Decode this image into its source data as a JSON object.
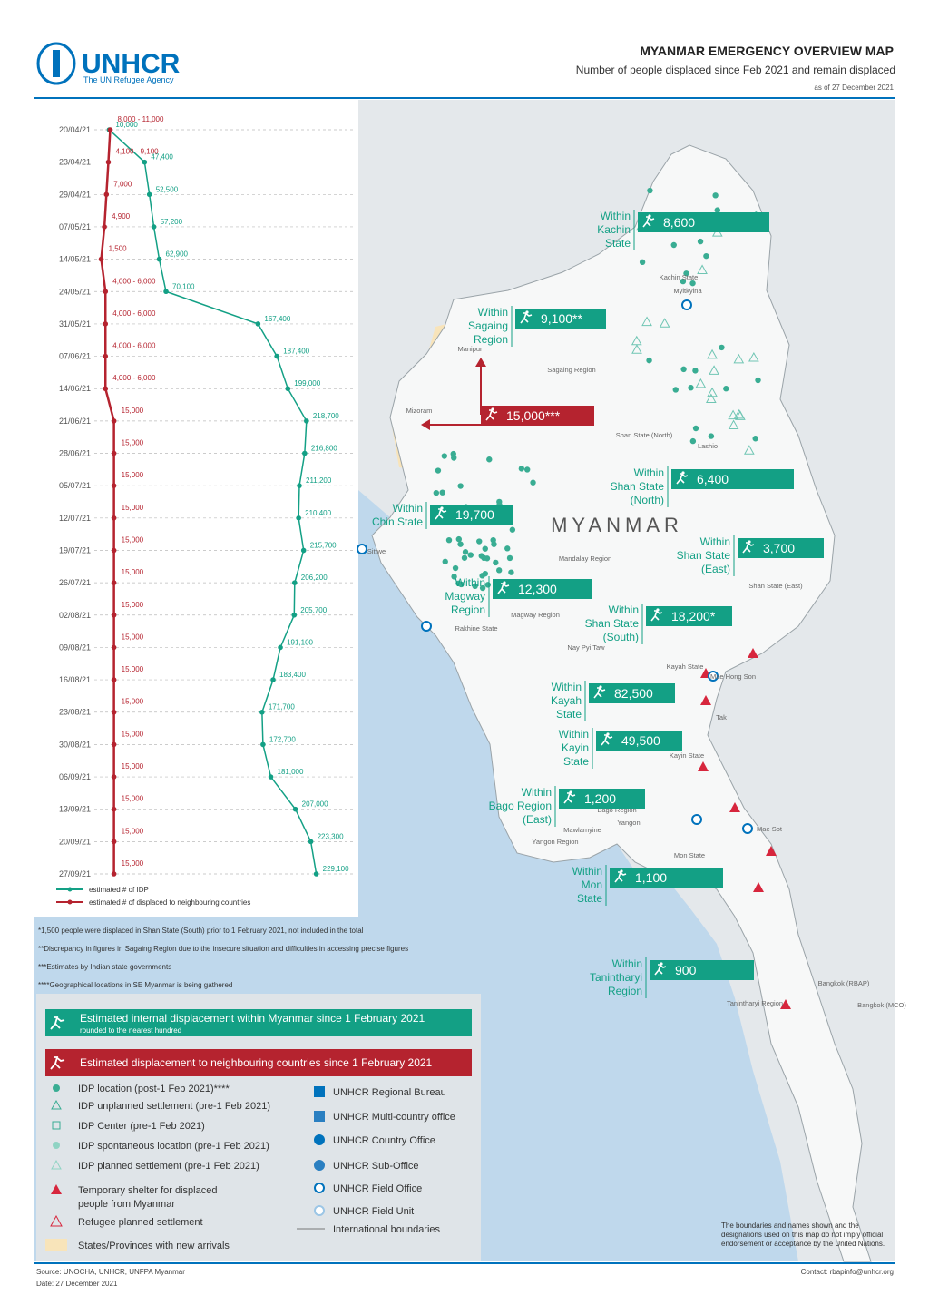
{
  "header": {
    "logo": "UNHCR",
    "logo_tagline": "The UN Refugee Agency",
    "title": "MYANMAR EMERGENCY OVERVIEW MAP",
    "subtitle": "Number of people displaced since Feb 2021 and remain displaced",
    "date": "as of 27 December 2021"
  },
  "timeline": {
    "type": "line",
    "dates": [
      "20/04/21",
      "23/04/21",
      "29/04/21",
      "07/05/21",
      "14/05/21",
      "24/05/21",
      "31/05/21",
      "07/06/21",
      "14/06/21",
      "21/06/21",
      "28/06/21",
      "05/07/21",
      "12/07/21",
      "19/07/21",
      "26/07/21",
      "02/08/21",
      "09/08/21",
      "16/08/21",
      "23/08/21",
      "30/08/21",
      "06/09/21",
      "13/09/21",
      "20/09/21",
      "27/09/21"
    ],
    "xlim": [
      0,
      240000
    ],
    "series": [
      {
        "name": "estimated # of IDP",
        "color": "#13a085",
        "values": [
          10000,
          47400,
          52500,
          57200,
          62900,
          70100,
          167400,
          187400,
          199000,
          218700,
          216800,
          211200,
          210400,
          215700,
          206200,
          205700,
          191100,
          183400,
          171700,
          172700,
          181000,
          207000,
          223300,
          229100
        ],
        "value_labels": [
          "10,000",
          "47,400",
          "52,500",
          "57,200",
          "62,900",
          "70,100",
          "167,400",
          "187,400",
          "199,000",
          "218,700",
          "216,800",
          "211,200",
          "210,400",
          "215,700",
          "206,200",
          "205,700",
          "191,100",
          "183,400",
          "171,700",
          "172,700",
          "181,000",
          "207,000",
          "223,300",
          "229,100"
        ]
      },
      {
        "name": "estimated # of displaced to neighbouring countries",
        "color": "#b5232f",
        "values": [
          11000,
          9100,
          7000,
          4900,
          1500,
          6000,
          6000,
          6000,
          6000,
          15000,
          15000,
          15000,
          15000,
          15000,
          15000,
          15000,
          15000,
          15000,
          15000,
          15000,
          15000,
          15000,
          15000,
          15000
        ],
        "value_labels": [
          "8,000 - 11,000",
          "4,100 - 9,100",
          "7,000",
          "4,900",
          "1,500",
          "4,000 - 6,000",
          "4,000 - 6,000",
          "4,000 - 6,000",
          "4,000 - 6,000",
          "15,000",
          "15,000",
          "15,000",
          "15,000",
          "15,000",
          "15,000",
          "15,000",
          "15,000",
          "15,000",
          "15,000",
          "15,000",
          "15,000",
          "15,000",
          "15,000",
          "15,000"
        ]
      }
    ]
  },
  "map": {
    "country_label": "MYANMAR",
    "callouts": [
      {
        "lines": [
          "Within",
          "Kachin",
          "State"
        ],
        "value": "8,600",
        "kind": "idp"
      },
      {
        "lines": [
          "Within",
          "Sagaing",
          "Region"
        ],
        "value": "9,100**",
        "kind": "idp"
      },
      {
        "lines": [],
        "value": "15,000***",
        "kind": "refugee"
      },
      {
        "lines": [
          "Within",
          "Shan State",
          "(North)"
        ],
        "value": "6,400",
        "kind": "idp"
      },
      {
        "lines": [
          "Within",
          "Chin State"
        ],
        "value": "19,700",
        "kind": "idp"
      },
      {
        "lines": [
          "Within",
          "Shan State",
          "(East)"
        ],
        "value": "3,700",
        "kind": "idp"
      },
      {
        "lines": [
          "Within",
          "Magway",
          "Region"
        ],
        "value": "12,300",
        "kind": "idp"
      },
      {
        "lines": [
          "Within",
          "Shan State",
          "(South)"
        ],
        "value": "18,200*",
        "kind": "idp"
      },
      {
        "lines": [
          "Within",
          "Kayah",
          "State"
        ],
        "value": "82,500",
        "kind": "idp"
      },
      {
        "lines": [
          "Within",
          "Kayin",
          "State"
        ],
        "value": "49,500",
        "kind": "idp"
      },
      {
        "lines": [
          "Within",
          "Bago Region",
          "(East)"
        ],
        "value": "1,200",
        "kind": "idp"
      },
      {
        "lines": [
          "Within",
          "Mon",
          "State"
        ],
        "value": "1,100",
        "kind": "idp"
      },
      {
        "lines": [
          "Within",
          "Tanintharyi",
          "Region"
        ],
        "value": "900",
        "kind": "idp"
      }
    ],
    "places": [
      "Kachin State",
      "Myitkyina",
      "Sagaing Region",
      "Manipur",
      "Mizoram",
      "Shan State (North)",
      "Lashio",
      "Mandalay Region",
      "Shan State (East)",
      "Sittwe",
      "Rakhine State",
      "Magway Region",
      "Nay Pyi Taw",
      "Kayah State",
      "Mae Hong Son",
      "Tak",
      "Kayin State",
      "Bago Region",
      "Yangon",
      "Yangon Region",
      "Mawlamyine",
      "Mae Sot",
      "Mon State",
      "Tanintharyi Region",
      "Bangkok (RBAP)",
      "Bangkok (MCO)"
    ]
  },
  "footnotes": [
    "*1,500 people were displaced in Shan State (South) prior to 1 February 2021, not included in the total",
    "**Discrepancy in figures in Sagaing Region due to the insecure situation and difficulties in accessing precise figures",
    "***Estimates by Indian state governments",
    "****Geographical locations in SE Myanmar is being gathered"
  ],
  "legend": {
    "banners": [
      {
        "text": "Estimated internal displacement within Myanmar since 1 February 2021",
        "note": "rounded to the nearest hundred"
      },
      {
        "text": "Estimated displacement to neighbouring countries since 1 February 2021"
      }
    ],
    "items_left": [
      [
        "IDP location (post-1 Feb 2021)****"
      ],
      [
        "IDP unplanned settlement (pre-1 Feb 2021)"
      ],
      [
        "IDP Center (pre-1 Feb 2021)"
      ],
      [
        "IDP spontaneous location (pre-1 Feb 2021)"
      ],
      [
        "IDP planned settlement (pre-1 Feb 2021)"
      ],
      [
        "Temporary shelter for displaced",
        "people from Myanmar"
      ],
      [
        "Refugee planned settlement"
      ],
      [
        "States/Provinces with new arrivals"
      ]
    ],
    "items_right": [
      "UNHCR Regional Bureau",
      "UNHCR Multi-country office",
      "UNHCR Country Office",
      "UNHCR Sub-Office",
      "UNHCR Field Office",
      "UNHCR Field Unit",
      "International boundaries"
    ]
  },
  "disclaimer": "The boundaries and names shown and the designations used on this map do not imply official endorsement or acceptance by the United Nations.",
  "footer": {
    "source": "Source: UNOCHA, UNHCR, UNFPA Myanmar",
    "date": "Date: 27 December 2021",
    "contact": "Contact: rbapinfo@unhcr.org"
  }
}
